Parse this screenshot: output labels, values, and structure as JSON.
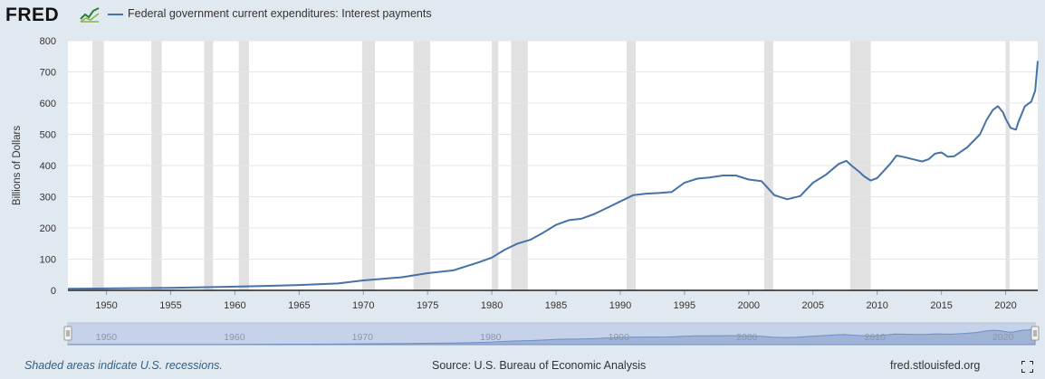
{
  "header": {
    "logo_text": "FRED",
    "legend_label": "Federal government current expenditures: Interest payments"
  },
  "footer": {
    "recession_note": "Shaded areas indicate U.S. recessions.",
    "source": "Source: U.S. Bureau of Economic Analysis",
    "site": "fred.stlouisfed.org"
  },
  "colors": {
    "series": "#4572a7",
    "recession": "#e1e1e1",
    "background": "#e1e9f0",
    "plot": "#ffffff"
  },
  "navigator": {
    "labels": [
      "1950",
      "1960",
      "1970",
      "1980",
      "1990",
      "2000",
      "2010",
      "2020"
    ]
  },
  "chart_data": {
    "type": "line",
    "title": "",
    "ylabel": "Billions of Dollars",
    "xlim": [
      1947,
      2022.5
    ],
    "ylim": [
      0,
      800
    ],
    "yticks": [
      0,
      100,
      200,
      300,
      400,
      500,
      600,
      700,
      800
    ],
    "xticks": [
      1950,
      1955,
      1960,
      1965,
      1970,
      1975,
      1980,
      1985,
      1990,
      1995,
      2000,
      2005,
      2010,
      2015,
      2020
    ],
    "grid": true,
    "recessions": [
      [
        1948.9,
        1949.8
      ],
      [
        1953.5,
        1954.3
      ],
      [
        1957.6,
        1958.3
      ],
      [
        1960.3,
        1961.1
      ],
      [
        1969.9,
        1970.9
      ],
      [
        1973.9,
        1975.2
      ],
      [
        1980.0,
        1980.5
      ],
      [
        1981.5,
        1982.8
      ],
      [
        1990.5,
        1991.2
      ],
      [
        2001.2,
        2001.9
      ],
      [
        2007.9,
        2009.5
      ],
      [
        2020.0,
        2020.3
      ]
    ],
    "series": [
      {
        "name": "Federal government current expenditures: Interest payments",
        "x": [
          1947,
          1950,
          1955,
          1960,
          1962,
          1965,
          1968,
          1970,
          1973,
          1975,
          1977,
          1979,
          1980,
          1981,
          1982,
          1983,
          1984,
          1985,
          1986,
          1987,
          1988,
          1989,
          1990,
          1991,
          1992,
          1993,
          1994,
          1995,
          1996,
          1997,
          1998,
          1999,
          2000,
          2001,
          2002,
          2003,
          2004,
          2005,
          2006,
          2007,
          2007.6,
          2008,
          2008.6,
          2009,
          2009.5,
          2010,
          2011,
          2011.5,
          2012,
          2013,
          2013.5,
          2014,
          2014.5,
          2015,
          2015.5,
          2016,
          2017,
          2018,
          2018.5,
          2019,
          2019.4,
          2019.8,
          2020,
          2020.4,
          2020.8,
          2021,
          2021.5,
          2022,
          2022.3,
          2022.5
        ],
        "y": [
          5,
          6,
          8,
          12,
          14,
          17,
          22,
          32,
          42,
          55,
          64,
          90,
          105,
          130,
          150,
          162,
          185,
          210,
          225,
          230,
          245,
          265,
          285,
          305,
          310,
          312,
          315,
          345,
          358,
          362,
          368,
          368,
          355,
          350,
          305,
          292,
          302,
          345,
          370,
          405,
          415,
          400,
          380,
          365,
          352,
          360,
          405,
          432,
          428,
          418,
          413,
          420,
          438,
          442,
          428,
          430,
          458,
          500,
          545,
          578,
          590,
          570,
          550,
          520,
          515,
          540,
          590,
          605,
          640,
          735
        ]
      }
    ]
  }
}
